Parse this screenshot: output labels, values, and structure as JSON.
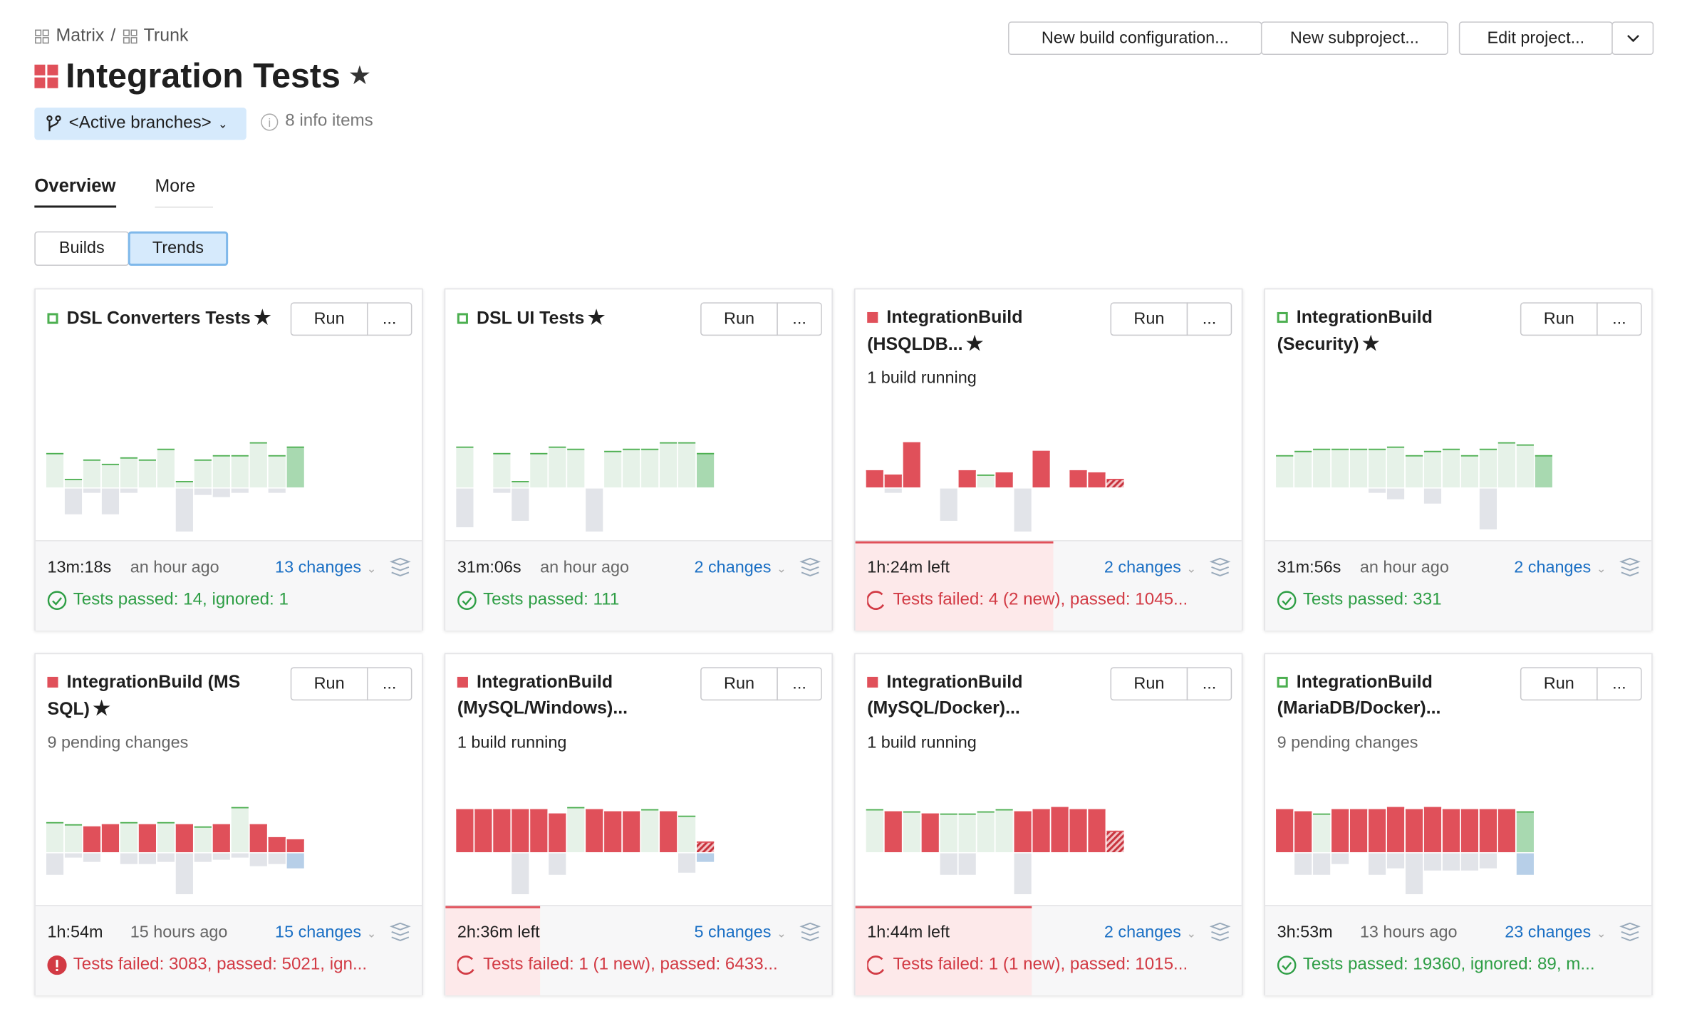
{
  "header": {
    "breadcrumb": [
      "Matrix",
      "/",
      "Trunk"
    ],
    "title": "Integration Tests",
    "actions": [
      "New build configuration...",
      "New subproject...",
      "Edit project..."
    ],
    "branch": "<Active branches>",
    "info": "8 info items"
  },
  "tabs": [
    "Overview",
    "More"
  ],
  "view_toggle": [
    "Builds",
    "Trends"
  ],
  "card_buttons": {
    "run": "Run",
    "more": "..."
  },
  "cards": [
    {
      "name": "DSL Converters Tests",
      "square": "passed",
      "starred": true,
      "subtitle": null,
      "duration": "13m:18s",
      "time_ago": "an hour ago",
      "changes": "13 changes",
      "status_kind": "passed",
      "status": "Tests passed: 14, ignored: 1",
      "up": [
        32,
        8,
        26,
        22,
        28,
        26,
        36,
        6,
        26,
        30,
        30,
        42,
        30,
        38
      ],
      "down": [
        0,
        24,
        4,
        24,
        4,
        0,
        0,
        40,
        6,
        8,
        4,
        0,
        4,
        0
      ],
      "sequence": "pppppppppppppP"
    },
    {
      "name": "DSL UI Tests",
      "square": "passed",
      "starred": true,
      "subtitle": null,
      "duration": "31m:06s",
      "time_ago": "an hour ago",
      "changes": "2 changes",
      "status_kind": "passed",
      "status": "Tests passed: 111",
      "up": [
        38,
        0,
        32,
        6,
        32,
        38,
        36,
        0,
        34,
        36,
        36,
        42,
        42,
        32
      ],
      "down": [
        36,
        0,
        4,
        30,
        0,
        0,
        0,
        40,
        0,
        0,
        0,
        0,
        0,
        0
      ],
      "sequence": "pppppppppppppP"
    },
    {
      "name": "IntegrationBuild (HSQLDB...",
      "square": "failed",
      "starred": true,
      "subtitle": "1 build running",
      "duration": "1h:24m left",
      "time_ago": null,
      "changes": "2 changes",
      "status_kind": "running",
      "status": "Tests failed: 4 (2 new), passed: 1045...",
      "up": [
        16,
        12,
        42,
        0,
        0,
        16,
        12,
        14,
        0,
        34,
        0,
        16,
        14,
        8
      ],
      "down": [
        0,
        4,
        0,
        0,
        30,
        0,
        0,
        0,
        40,
        0,
        0,
        0,
        0,
        0
      ],
      "sequence": "fffppfpfpfpffr"
    },
    {
      "name": "IntegrationBuild (Security)",
      "square": "passed",
      "starred": true,
      "subtitle": null,
      "duration": "31m:56s",
      "time_ago": "an hour ago",
      "changes": "2 changes",
      "status_kind": "passed",
      "status": "Tests passed: 331",
      "up": [
        30,
        34,
        36,
        36,
        36,
        36,
        38,
        30,
        34,
        36,
        30,
        36,
        42,
        40,
        30
      ],
      "down": [
        0,
        0,
        0,
        0,
        0,
        4,
        10,
        0,
        14,
        0,
        0,
        38,
        0,
        0,
        0
      ],
      "sequence": "ppppppppppppppP"
    },
    {
      "name": "IntegrationBuild (MS SQL)",
      "square": "failed",
      "starred": true,
      "subtitle": "9 pending changes",
      "duration": "1h:54m",
      "time_ago": "15 hours ago",
      "changes": "15 changes",
      "status_kind": "failed",
      "status": "Tests failed: 3083, passed: 5021, ign...",
      "up": [
        28,
        26,
        24,
        26,
        28,
        26,
        28,
        26,
        24,
        26,
        42,
        26,
        14,
        12
      ],
      "down": [
        20,
        4,
        8,
        0,
        10,
        10,
        8,
        38,
        8,
        6,
        4,
        12,
        10,
        14
      ],
      "sequence": "ppffpfpfpfpfff"
    },
    {
      "name": "IntegrationBuild (MySQL/Windows)...",
      "square": "failed",
      "starred": false,
      "subtitle": "1 build running",
      "duration": "2h:36m left",
      "time_ago": null,
      "changes": "5 changes",
      "status_kind": "running",
      "status": "Tests failed: 1 (1 new), passed: 6433...",
      "up": [
        40,
        40,
        40,
        40,
        40,
        36,
        42,
        40,
        38,
        38,
        40,
        38,
        34,
        10
      ],
      "down": [
        0,
        0,
        0,
        38,
        0,
        20,
        0,
        0,
        0,
        0,
        0,
        0,
        18,
        8
      ],
      "sequence": "ffffffpfffpfpr"
    },
    {
      "name": "IntegrationBuild (MySQL/Docker)...",
      "square": "failed",
      "starred": false,
      "subtitle": "1 build running",
      "duration": "1h:44m left",
      "time_ago": null,
      "changes": "2 changes",
      "status_kind": "running",
      "status": "Tests failed: 1 (1 new), passed: 1015...",
      "up": [
        40,
        38,
        38,
        36,
        36,
        36,
        38,
        40,
        38,
        40,
        42,
        40,
        40,
        20
      ],
      "down": [
        0,
        0,
        0,
        0,
        20,
        20,
        0,
        0,
        38,
        0,
        0,
        0,
        0,
        0
      ],
      "sequence": "pfpfppppfffffr"
    },
    {
      "name": "IntegrationBuild (MariaDB/Docker)...",
      "square": "passed",
      "starred": false,
      "subtitle": "9 pending changes",
      "duration": "3h:53m",
      "time_ago": "13 hours ago",
      "changes": "23 changes",
      "status_kind": "passed",
      "status": "Tests passed: 19360, ignored: 89, m...",
      "up": [
        40,
        38,
        36,
        40,
        40,
        40,
        42,
        40,
        42,
        40,
        40,
        40,
        40,
        38
      ],
      "down": [
        0,
        20,
        20,
        10,
        0,
        20,
        14,
        38,
        16,
        16,
        16,
        14,
        0,
        20
      ],
      "sequence": "ffpffffffffffP"
    }
  ]
}
